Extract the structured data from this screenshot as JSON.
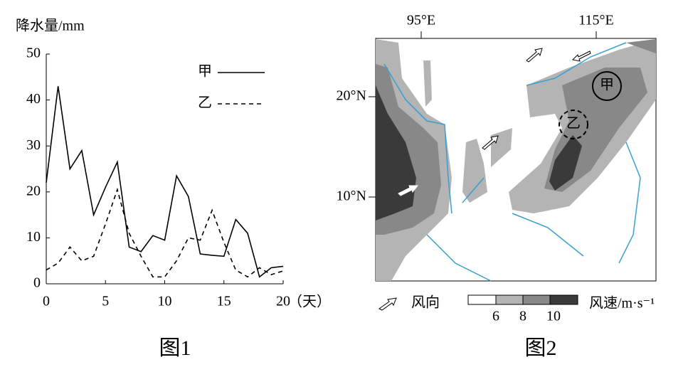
{
  "chart_data": {
    "type": "line",
    "y_label": "降水量/mm",
    "x_label": "（天）",
    "caption": "图1",
    "x": [
      0,
      1,
      2,
      3,
      4,
      5,
      6,
      7,
      8,
      9,
      10,
      11,
      12,
      13,
      14,
      15,
      16,
      17,
      18,
      19,
      20
    ],
    "series": [
      {
        "name": "甲",
        "color": "#000000",
        "dash": false,
        "values": [
          22,
          43,
          25,
          29,
          15,
          21,
          26.5,
          8,
          7,
          10.5,
          9.5,
          23.5,
          19,
          6.5,
          6.2,
          6,
          14,
          11,
          1.5,
          3.5,
          3.8
        ]
      },
      {
        "name": "乙",
        "color": "#000000",
        "dash": true,
        "values": [
          3,
          4.5,
          8,
          5,
          6,
          13,
          20.5,
          11,
          6,
          1.5,
          1.5,
          5,
          10,
          9.5,
          16,
          9,
          3,
          1.5,
          3.5,
          2,
          2.8
        ]
      }
    ],
    "xlim": [
      0,
      20
    ],
    "xticks": [
      0,
      5,
      10,
      15,
      20
    ],
    "ylim": [
      0,
      50
    ],
    "yticks": [
      0,
      10,
      20,
      30,
      40,
      50
    ],
    "grid": false,
    "legend": "upper-right"
  },
  "map": {
    "lon_labels": [
      "95°E",
      "115°E"
    ],
    "lat_labels": [
      "20°N",
      "10°N"
    ],
    "points": [
      "甲",
      "乙"
    ],
    "wind_direction_label": "风向",
    "speed_label": "风速/m·s⁻¹",
    "speed_ticks": [
      6,
      8,
      10
    ],
    "caption": "图2"
  }
}
